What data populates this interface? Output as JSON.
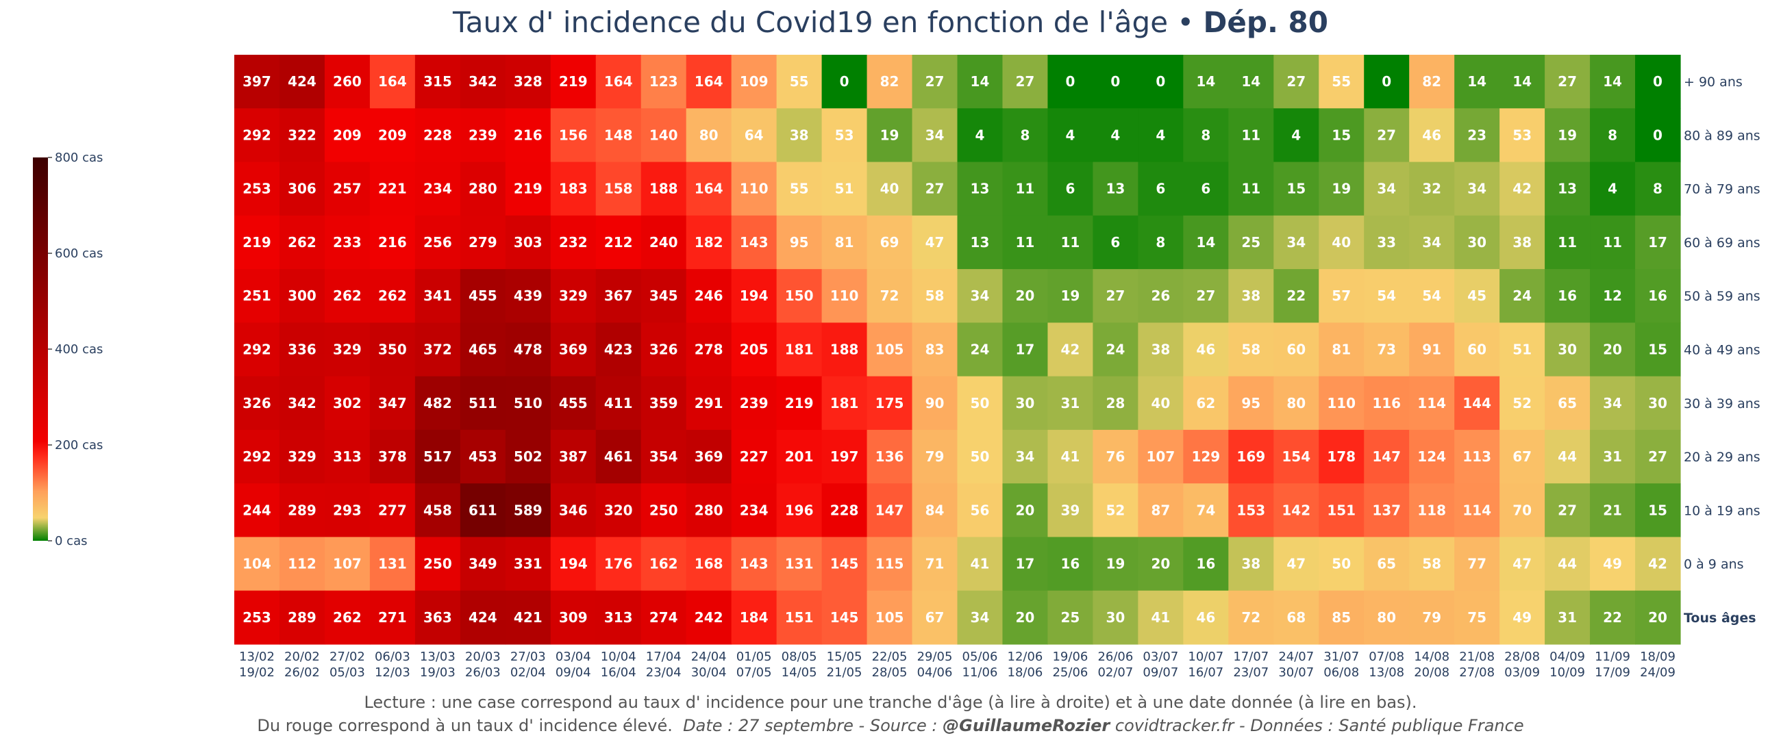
{
  "title": {
    "main": "Taux d' incidence du Covid19 en fonction de l'âge",
    "sep": " • ",
    "dept": "Dép. 80"
  },
  "footer": {
    "line1": "Lecture : une case correspond au taux d' incidence pour une tranche d'âge (à lire à droite) et à une date donnée (à lire en bas).",
    "line2_plain": "Du rouge correspond à un taux d' incidence élevé.",
    "line2_date": "Date : 27 septembre - Source :",
    "line2_handle": "@GuillaumeRozier",
    "line2_rest": "covidtracker.fr - Données : Santé publique France"
  },
  "colors": {
    "scale": [
      "#008000",
      "#f7d36e",
      "#ff9f5a",
      "#ff2a1a",
      "#f20000",
      "#c40000",
      "#8a0000",
      "#3d0000"
    ],
    "axis_text": "#2a3f5f",
    "cell_text": "#ffffff"
  },
  "chart_data": {
    "type": "heatmap",
    "title": "Taux d' incidence du Covid19 en fonction de l'âge • Dép. 80",
    "zlim": [
      0,
      800
    ],
    "colorbar_ticks": [
      {
        "value": 800,
        "label": "800 cas"
      },
      {
        "value": 600,
        "label": "600 cas"
      },
      {
        "value": 400,
        "label": "400 cas"
      },
      {
        "value": 200,
        "label": "200 cas"
      },
      {
        "value": 0,
        "label": "0 cas"
      }
    ],
    "x": [
      [
        "13/02",
        "19/02"
      ],
      [
        "20/02",
        "26/02"
      ],
      [
        "27/02",
        "05/03"
      ],
      [
        "06/03",
        "12/03"
      ],
      [
        "13/03",
        "19/03"
      ],
      [
        "20/03",
        "26/03"
      ],
      [
        "27/03",
        "02/04"
      ],
      [
        "03/04",
        "09/04"
      ],
      [
        "10/04",
        "16/04"
      ],
      [
        "17/04",
        "23/04"
      ],
      [
        "24/04",
        "30/04"
      ],
      [
        "01/05",
        "07/05"
      ],
      [
        "08/05",
        "14/05"
      ],
      [
        "15/05",
        "21/05"
      ],
      [
        "22/05",
        "28/05"
      ],
      [
        "29/05",
        "04/06"
      ],
      [
        "05/06",
        "11/06"
      ],
      [
        "12/06",
        "18/06"
      ],
      [
        "19/06",
        "25/06"
      ],
      [
        "26/06",
        "02/07"
      ],
      [
        "03/07",
        "09/07"
      ],
      [
        "10/07",
        "16/07"
      ],
      [
        "17/07",
        "23/07"
      ],
      [
        "24/07",
        "30/07"
      ],
      [
        "31/07",
        "06/08"
      ],
      [
        "07/08",
        "13/08"
      ],
      [
        "14/08",
        "20/08"
      ],
      [
        "21/08",
        "27/08"
      ],
      [
        "28/08",
        "03/09"
      ],
      [
        "04/09",
        "10/09"
      ],
      [
        "11/09",
        "17/09"
      ],
      [
        "18/09",
        "24/09"
      ]
    ],
    "y": [
      "+ 90 ans",
      "80 à 89 ans",
      "70 à 79 ans",
      "60 à 69 ans",
      "50 à 59 ans",
      "40 à 49 ans",
      "30 à 39 ans",
      "20 à 29 ans",
      "10 à 19 ans",
      "0 à 9 ans",
      "Tous âges"
    ],
    "y_bold": "Tous âges",
    "z": [
      [
        397,
        424,
        260,
        164,
        315,
        342,
        328,
        219,
        164,
        123,
        164,
        109,
        55,
        0,
        82,
        27,
        14,
        27,
        0,
        0,
        0,
        14,
        14,
        27,
        55,
        0,
        82,
        14,
        14,
        27,
        14,
        0
      ],
      [
        292,
        322,
        209,
        209,
        228,
        239,
        216,
        156,
        148,
        140,
        80,
        64,
        38,
        53,
        19,
        34,
        4,
        8,
        4,
        4,
        4,
        8,
        11,
        4,
        15,
        27,
        46,
        23,
        53,
        19,
        8,
        0
      ],
      [
        253,
        306,
        257,
        221,
        234,
        280,
        219,
        183,
        158,
        188,
        164,
        110,
        55,
        51,
        40,
        27,
        13,
        11,
        6,
        13,
        6,
        6,
        11,
        15,
        19,
        34,
        32,
        34,
        42,
        13,
        4,
        8
      ],
      [
        219,
        262,
        233,
        216,
        256,
        279,
        303,
        232,
        212,
        240,
        182,
        143,
        95,
        81,
        69,
        47,
        13,
        11,
        11,
        6,
        8,
        14,
        25,
        34,
        40,
        33,
        34,
        30,
        38,
        11,
        11,
        17
      ],
      [
        251,
        300,
        262,
        262,
        341,
        455,
        439,
        329,
        367,
        345,
        246,
        194,
        150,
        110,
        72,
        58,
        34,
        20,
        19,
        27,
        26,
        27,
        38,
        22,
        57,
        54,
        54,
        45,
        24,
        16,
        12,
        16
      ],
      [
        292,
        336,
        329,
        350,
        372,
        465,
        478,
        369,
        423,
        326,
        278,
        205,
        181,
        188,
        105,
        83,
        24,
        17,
        42,
        24,
        38,
        46,
        58,
        60,
        81,
        73,
        91,
        60,
        51,
        30,
        20,
        15
      ],
      [
        326,
        342,
        302,
        347,
        482,
        511,
        510,
        455,
        411,
        359,
        291,
        239,
        219,
        181,
        175,
        90,
        50,
        30,
        31,
        28,
        40,
        62,
        95,
        80,
        110,
        116,
        114,
        144,
        52,
        65,
        34,
        30
      ],
      [
        292,
        329,
        313,
        378,
        517,
        453,
        502,
        387,
        461,
        354,
        369,
        227,
        201,
        197,
        136,
        79,
        50,
        34,
        41,
        76,
        107,
        129,
        169,
        154,
        178,
        147,
        124,
        113,
        67,
        44,
        31,
        27
      ],
      [
        244,
        289,
        293,
        277,
        458,
        611,
        589,
        346,
        320,
        250,
        280,
        234,
        196,
        228,
        147,
        84,
        56,
        20,
        39,
        52,
        87,
        74,
        153,
        142,
        151,
        137,
        118,
        114,
        70,
        27,
        21,
        15
      ],
      [
        104,
        112,
        107,
        131,
        250,
        349,
        331,
        194,
        176,
        162,
        168,
        143,
        131,
        145,
        115,
        71,
        41,
        17,
        16,
        19,
        20,
        16,
        38,
        47,
        50,
        65,
        58,
        77,
        47,
        44,
        49,
        42
      ],
      [
        253,
        289,
        262,
        271,
        363,
        424,
        421,
        309,
        313,
        274,
        242,
        184,
        151,
        145,
        105,
        67,
        34,
        20,
        25,
        30,
        41,
        46,
        72,
        68,
        85,
        80,
        79,
        75,
        49,
        31,
        22,
        20
      ]
    ]
  }
}
